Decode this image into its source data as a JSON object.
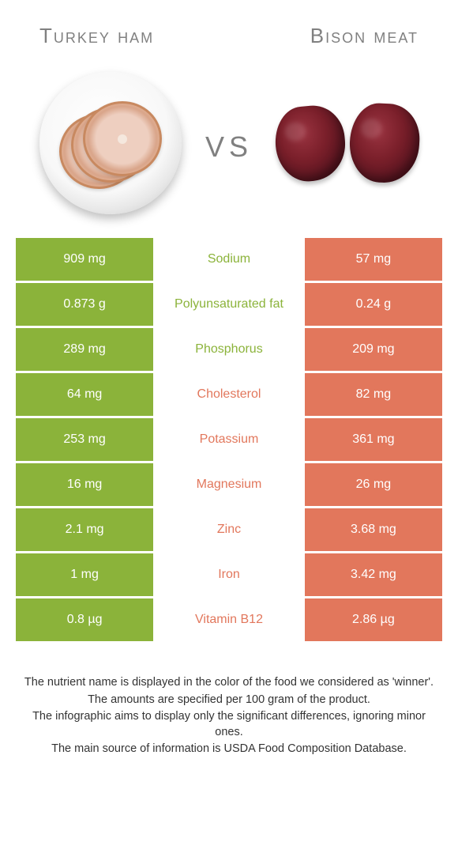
{
  "left_title": "Turkey ham",
  "right_title": "Bison meat",
  "vs_label": "vs",
  "colors": {
    "left": "#8bb33a",
    "right": "#e2775c",
    "title_text": "#808080"
  },
  "rows": [
    {
      "label": "Sodium",
      "left": "909 mg",
      "right": "57 mg",
      "winner": "left"
    },
    {
      "label": "Polyunsaturated fat",
      "left": "0.873 g",
      "right": "0.24 g",
      "winner": "left"
    },
    {
      "label": "Phosphorus",
      "left": "289 mg",
      "right": "209 mg",
      "winner": "left"
    },
    {
      "label": "Cholesterol",
      "left": "64 mg",
      "right": "82 mg",
      "winner": "right"
    },
    {
      "label": "Potassium",
      "left": "253 mg",
      "right": "361 mg",
      "winner": "right"
    },
    {
      "label": "Magnesium",
      "left": "16 mg",
      "right": "26 mg",
      "winner": "right"
    },
    {
      "label": "Zinc",
      "left": "2.1 mg",
      "right": "3.68 mg",
      "winner": "right"
    },
    {
      "label": "Iron",
      "left": "1 mg",
      "right": "3.42 mg",
      "winner": "right"
    },
    {
      "label": "Vitamin B12",
      "left": "0.8 µg",
      "right": "2.86 µg",
      "winner": "right"
    }
  ],
  "footer": {
    "line1": "The nutrient name is displayed in the color of the food we considered as 'winner'.",
    "line2": "The amounts are specified per 100 gram of the product.",
    "line3": "The infographic aims to display only the significant differences, ignoring minor ones.",
    "line4": "The main source of information is USDA Food Composition Database."
  }
}
